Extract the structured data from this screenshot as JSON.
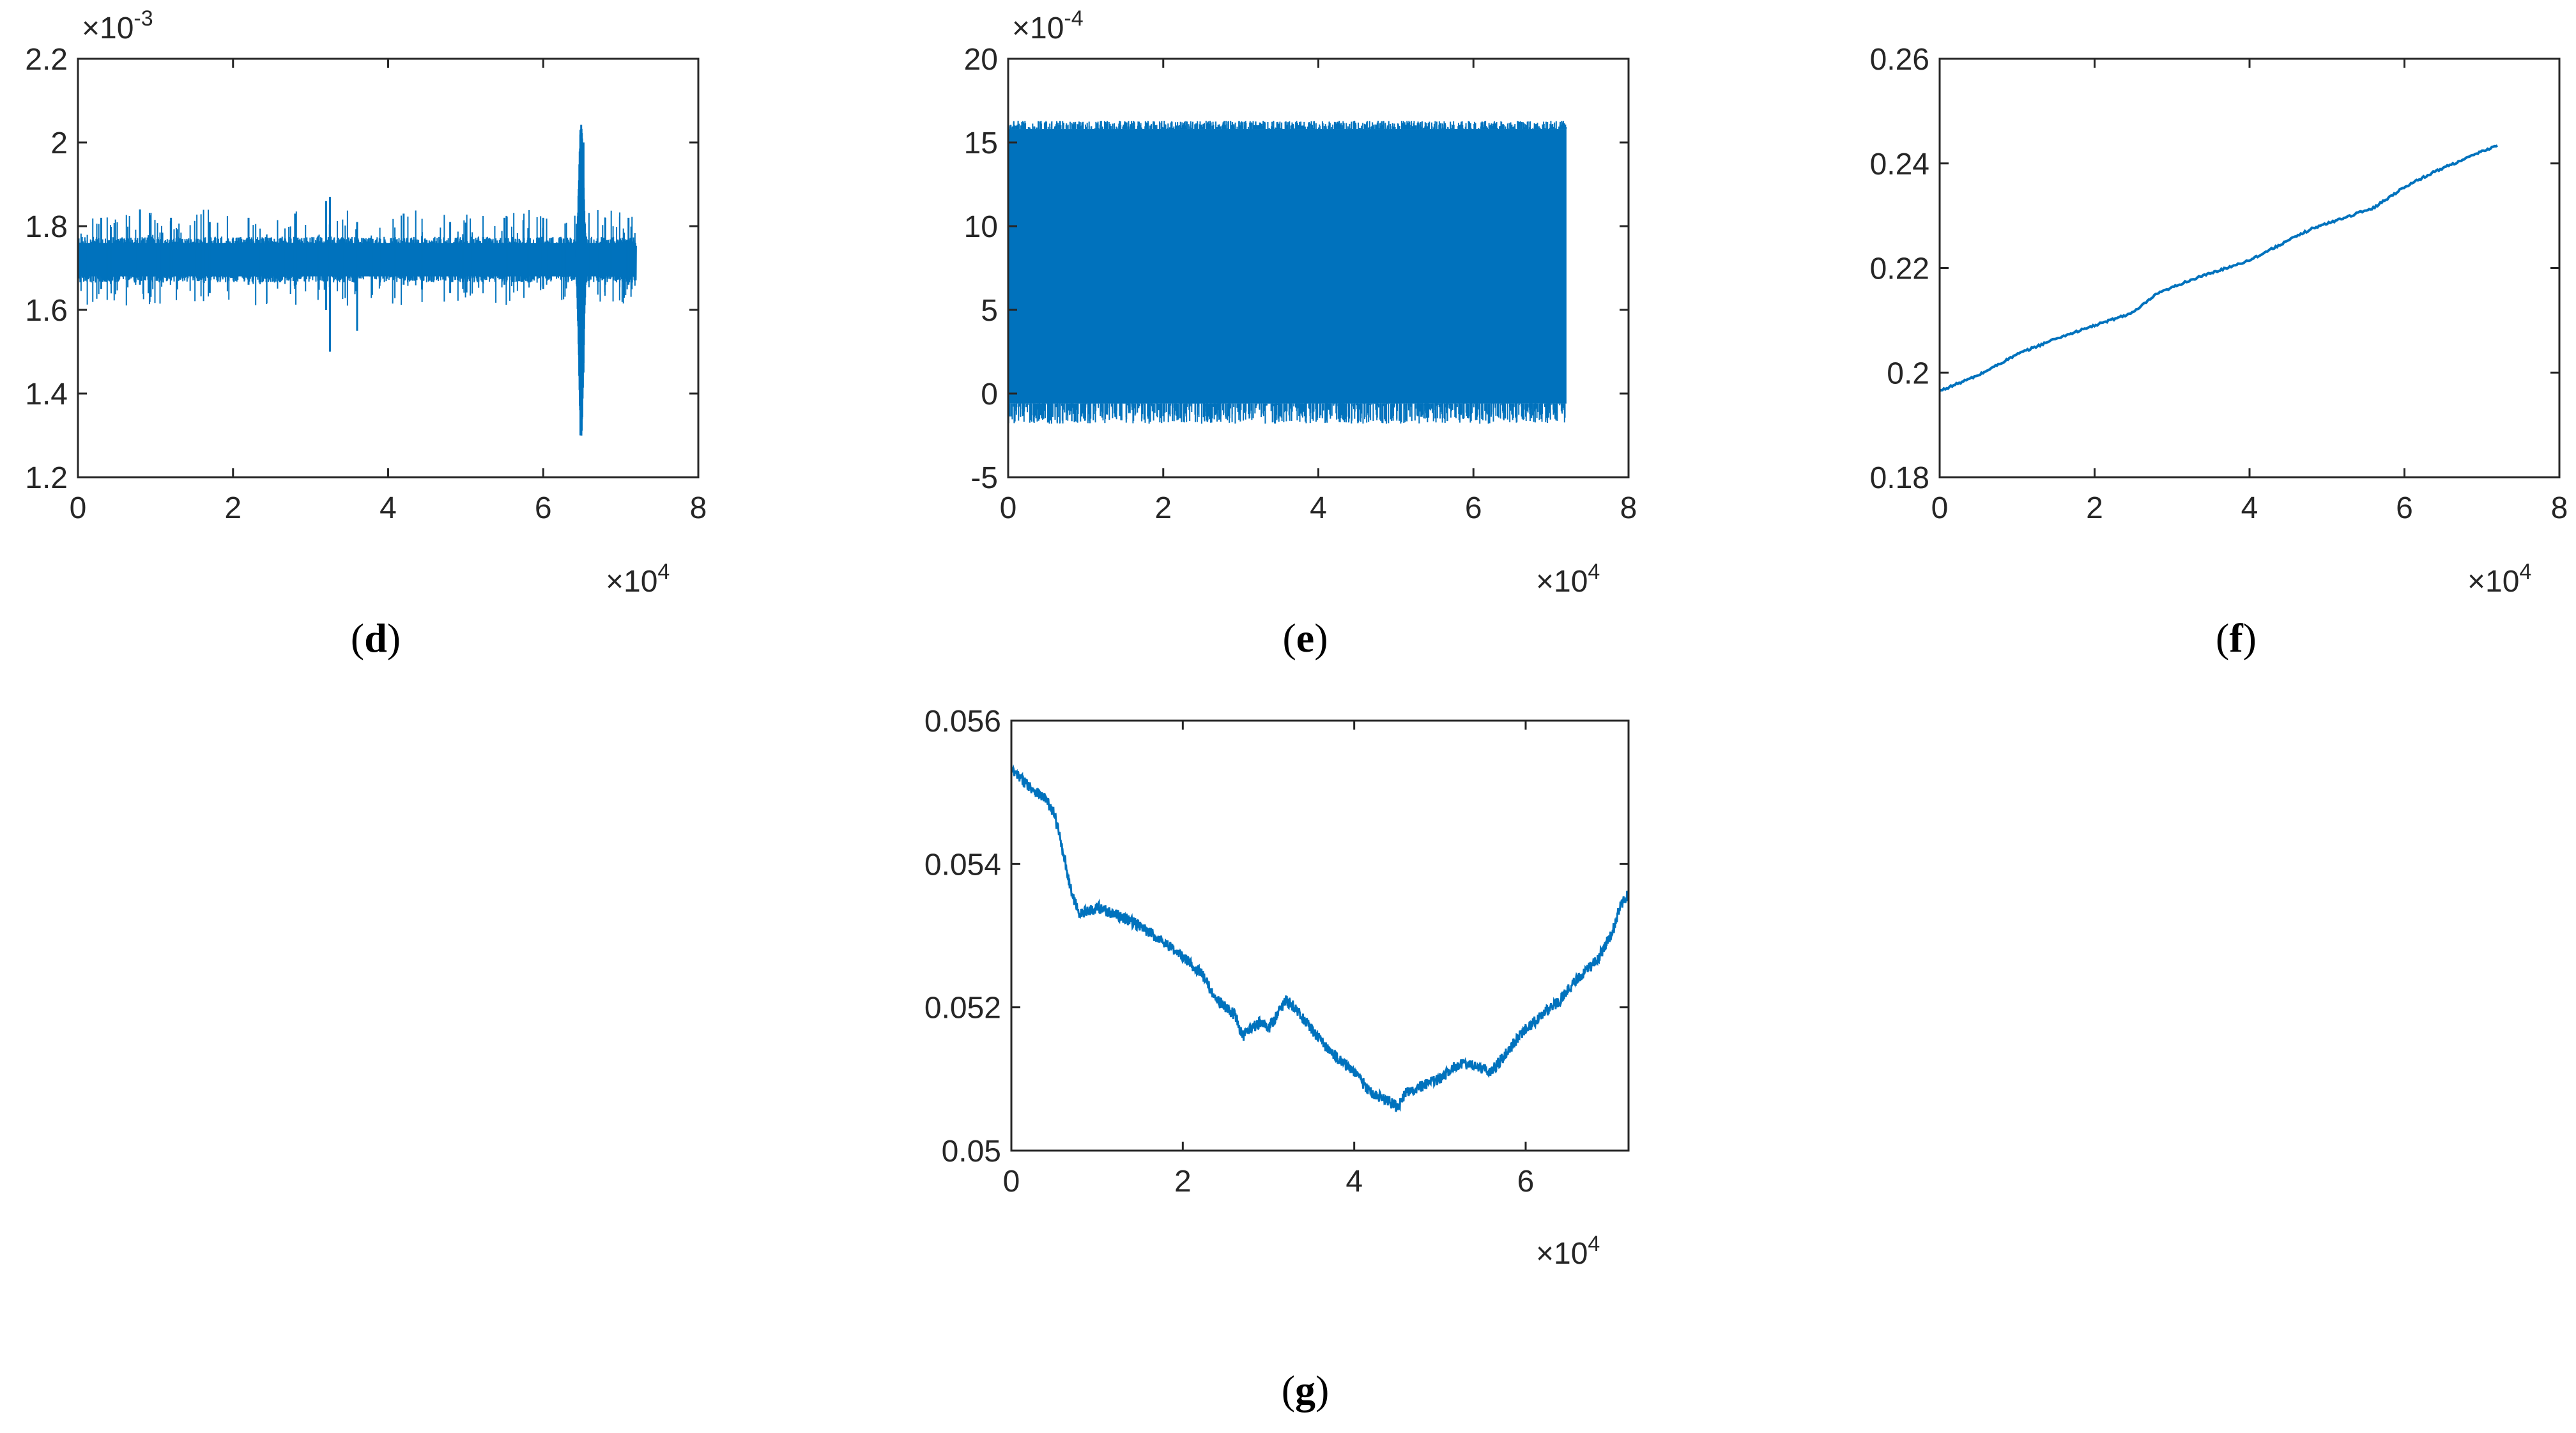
{
  "figure": {
    "line_color": "#0072BD",
    "axis_color": "#262626"
  },
  "chart_data": [
    {
      "id": "d",
      "panel_label": "d",
      "type": "line",
      "xlim": [
        0,
        80000
      ],
      "ylim": [
        0.0012,
        0.0022
      ],
      "xticks": [
        0,
        20000,
        40000,
        60000,
        80000
      ],
      "xtick_labels": [
        "0",
        "2",
        "4",
        "6",
        "8"
      ],
      "x_exponent_label": "×10",
      "x_exponent": "4",
      "yticks": [
        0.0012,
        0.0014,
        0.0016,
        0.0018,
        0.002,
        0.0022
      ],
      "ytick_labels": [
        "1.2",
        "1.4",
        "1.6",
        "1.8",
        "2",
        "2.2"
      ],
      "y_exponent_label": "×10",
      "y_exponent": "-3",
      "grid": false,
      "series": [
        {
          "x_range": [
            0,
            72000
          ],
          "band": [
            0.00168,
            0.00176
          ],
          "mean": 0.00172,
          "features": [
            {
              "x": 3000,
              "min": 0.00165,
              "max": 0.00182
            },
            {
              "x": 8000,
              "min": 0.00166,
              "max": 0.00184
            },
            {
              "x": 12000,
              "min": 0.00167,
              "max": 0.00182
            },
            {
              "x": 17000,
              "min": 0.00164,
              "max": 0.00181
            },
            {
              "x": 22000,
              "min": 0.00166,
              "max": 0.00182
            },
            {
              "x": 28000,
              "min": 0.00165,
              "max": 0.00183
            },
            {
              "x": 32000,
              "min": 0.0016,
              "max": 0.00186
            },
            {
              "x": 32500,
              "min": 0.0015,
              "max": 0.00187
            },
            {
              "x": 36000,
              "min": 0.00155,
              "max": 0.00181
            },
            {
              "x": 42000,
              "min": 0.00166,
              "max": 0.00183
            },
            {
              "x": 48000,
              "min": 0.00164,
              "max": 0.00181
            },
            {
              "x": 55000,
              "min": 0.00166,
              "max": 0.00182
            },
            {
              "x": 60000,
              "min": 0.00165,
              "max": 0.00182
            },
            {
              "x": 64800,
              "min": 0.0013,
              "max": 0.00203
            },
            {
              "x": 65200,
              "min": 0.00145,
              "max": 0.002
            },
            {
              "x": 68000,
              "min": 0.00166,
              "max": 0.00182
            },
            {
              "x": 71000,
              "min": 0.00166,
              "max": 0.00182
            }
          ]
        }
      ]
    },
    {
      "id": "e",
      "panel_label": "e",
      "type": "line",
      "xlim": [
        0,
        80000
      ],
      "ylim": [
        -0.0005,
        0.002
      ],
      "xticks": [
        0,
        20000,
        40000,
        60000,
        80000
      ],
      "xtick_labels": [
        "0",
        "2",
        "4",
        "6",
        "8"
      ],
      "x_exponent_label": "×10",
      "x_exponent": "4",
      "yticks": [
        -0.0005,
        0,
        0.0005,
        0.001,
        0.0015,
        0.002
      ],
      "ytick_labels": [
        "-5",
        "0",
        "5",
        "10",
        "15",
        "20"
      ],
      "y_exponent_label": "×10",
      "y_exponent": "-4",
      "grid": false,
      "series": [
        {
          "x_range": [
            0,
            72000
          ],
          "band": [
            -6e-05,
            0.00158
          ],
          "outer_min": -0.00018,
          "outer_max": 0.00163
        }
      ]
    },
    {
      "id": "f",
      "panel_label": "f",
      "type": "line",
      "xlim": [
        0,
        80000
      ],
      "ylim": [
        0.18,
        0.26
      ],
      "xticks": [
        0,
        20000,
        40000,
        60000,
        80000
      ],
      "xtick_labels": [
        "0",
        "2",
        "4",
        "6",
        "8"
      ],
      "x_exponent_label": "×10",
      "x_exponent": "4",
      "yticks": [
        0.18,
        0.2,
        0.22,
        0.24,
        0.26
      ],
      "ytick_labels": [
        "0.18",
        "0.2",
        "0.22",
        "0.24",
        "0.26"
      ],
      "grid": false,
      "series": [
        {
          "x": [
            0,
            5000,
            10000,
            15000,
            20000,
            25000,
            28000,
            32000,
            36000,
            40000,
            44000,
            48000,
            52000,
            56000,
            60000,
            64000,
            68000,
            72000
          ],
          "y": [
            0.1965,
            0.1995,
            0.2035,
            0.2065,
            0.209,
            0.2115,
            0.215,
            0.2175,
            0.2195,
            0.2215,
            0.2245,
            0.2275,
            0.2295,
            0.2315,
            0.2355,
            0.2385,
            0.241,
            0.2435
          ]
        }
      ]
    },
    {
      "id": "g",
      "panel_label": "g",
      "type": "line",
      "xlim": [
        0,
        72000
      ],
      "ylim": [
        0.05,
        0.056
      ],
      "xticks": [
        0,
        20000,
        40000,
        60000
      ],
      "xtick_labels": [
        "0",
        "2",
        "4",
        "6"
      ],
      "x_exponent_label": "×10",
      "x_exponent": "4",
      "yticks": [
        0.05,
        0.052,
        0.054,
        0.056
      ],
      "ytick_labels": [
        "0.05",
        "0.052",
        "0.054",
        "0.056"
      ],
      "grid": false,
      "series": [
        {
          "x": [
            0,
            2000,
            4000,
            5000,
            6000,
            7000,
            8000,
            10000,
            14000,
            18000,
            22000,
            24000,
            26000,
            27000,
            29000,
            30000,
            31000,
            32000,
            33000,
            35000,
            37000,
            40000,
            42000,
            44000,
            45000,
            46000,
            48000,
            50000,
            52000,
            54000,
            56000,
            58000,
            60000,
            62000,
            64000,
            66000,
            68000,
            70000,
            71000,
            72000
          ],
          "y": [
            0.0553,
            0.0551,
            0.0549,
            0.0547,
            0.0542,
            0.0536,
            0.0533,
            0.0534,
            0.0532,
            0.0529,
            0.0525,
            0.0521,
            0.0519,
            0.0516,
            0.0518,
            0.0517,
            0.0519,
            0.0521,
            0.052,
            0.0517,
            0.0514,
            0.0511,
            0.0508,
            0.0507,
            0.0506,
            0.0508,
            0.0509,
            0.051,
            0.0512,
            0.0512,
            0.0511,
            0.0514,
            0.0517,
            0.0519,
            0.0521,
            0.0524,
            0.0526,
            0.053,
            0.0534,
            0.0536
          ],
          "noise": 8e-05
        }
      ]
    }
  ]
}
